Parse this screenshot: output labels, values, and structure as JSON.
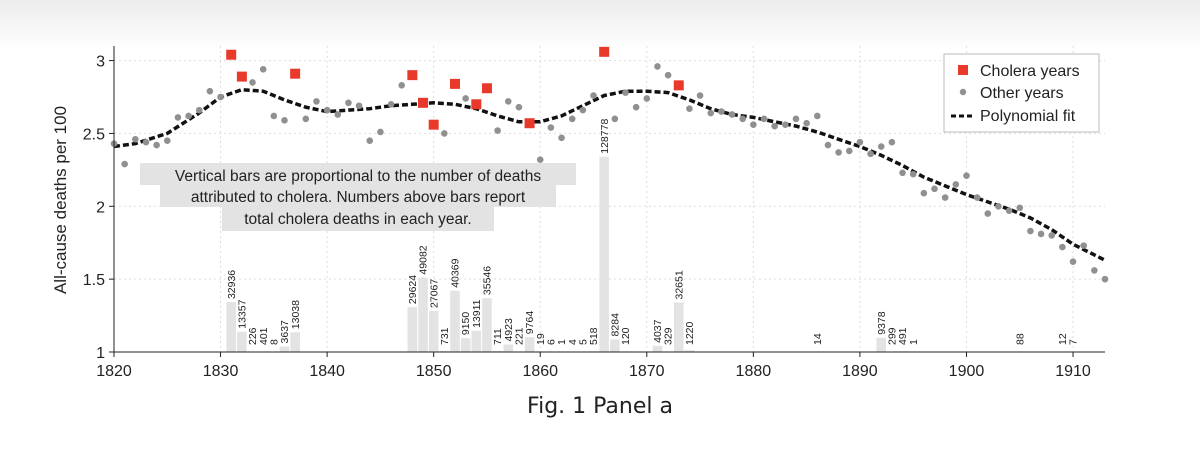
{
  "caption": "Fig. 1 Panel a",
  "chart_data": {
    "type": "scatter",
    "ylabel": "All-cause deaths per 100",
    "xlim": [
      1820,
      1913
    ],
    "ylim": [
      1,
      3.1
    ],
    "xticks": [
      1820,
      1830,
      1840,
      1850,
      1860,
      1870,
      1880,
      1890,
      1900,
      1910
    ],
    "yticks": [
      1,
      1.5,
      2,
      2.5,
      3
    ],
    "grid": true,
    "legend_position": "top-right",
    "legend": {
      "cholera": "Cholera years",
      "other": "Other years",
      "fit": "Polynomial fit"
    },
    "annotation": [
      "Vertical bars are proportional to the number of deaths",
      "attributed to cholera. Numbers above bars report",
      "total cholera deaths in each year."
    ],
    "colors": {
      "cholera": "#e8392b",
      "other": "#909090",
      "fit": "#111111",
      "bar": "#e3e3e3"
    },
    "series": [
      {
        "name": "Cholera years",
        "x": [
          1831,
          1832,
          1837,
          1848,
          1849,
          1850,
          1852,
          1854,
          1855,
          1859,
          1866,
          1873
        ],
        "y": [
          3.04,
          2.89,
          2.91,
          2.9,
          2.71,
          2.56,
          2.84,
          2.7,
          2.81,
          2.57,
          3.06,
          2.83
        ]
      },
      {
        "name": "Other years",
        "x": [
          1820,
          1821,
          1822,
          1823,
          1824,
          1825,
          1826,
          1827,
          1828,
          1829,
          1830,
          1833,
          1834,
          1835,
          1836,
          1838,
          1839,
          1840,
          1841,
          1842,
          1843,
          1844,
          1845,
          1846,
          1847,
          1851,
          1853,
          1856,
          1857,
          1858,
          1860,
          1861,
          1862,
          1863,
          1864,
          1865,
          1867,
          1868,
          1869,
          1870,
          1871,
          1872,
          1874,
          1875,
          1876,
          1877,
          1878,
          1879,
          1880,
          1881,
          1882,
          1883,
          1884,
          1885,
          1886,
          1887,
          1888,
          1889,
          1890,
          1891,
          1892,
          1893,
          1894,
          1895,
          1896,
          1897,
          1898,
          1899,
          1900,
          1901,
          1902,
          1903,
          1904,
          1905,
          1906,
          1907,
          1908,
          1909,
          1910,
          1911,
          1912,
          1913
        ],
        "y": [
          2.43,
          2.29,
          2.46,
          2.44,
          2.42,
          2.45,
          2.61,
          2.62,
          2.66,
          2.79,
          2.75,
          2.85,
          2.94,
          2.62,
          2.59,
          2.6,
          2.72,
          2.66,
          2.63,
          2.71,
          2.69,
          2.45,
          2.51,
          2.7,
          2.83,
          2.5,
          2.74,
          2.52,
          2.72,
          2.68,
          2.32,
          2.54,
          2.47,
          2.6,
          2.66,
          2.76,
          2.6,
          2.78,
          2.68,
          2.74,
          2.96,
          2.9,
          2.67,
          2.76,
          2.64,
          2.65,
          2.63,
          2.6,
          2.56,
          2.6,
          2.55,
          2.56,
          2.6,
          2.57,
          2.62,
          2.42,
          2.37,
          2.38,
          2.44,
          2.36,
          2.41,
          2.44,
          2.23,
          2.22,
          2.09,
          2.12,
          2.06,
          2.15,
          2.21,
          2.06,
          1.95,
          2.0,
          1.97,
          1.99,
          1.83,
          1.81,
          1.8,
          1.72,
          1.62,
          1.73,
          1.56,
          1.5
        ]
      },
      {
        "name": "Polynomial fit",
        "x": [
          1820,
          1822,
          1825,
          1828,
          1830,
          1832,
          1834,
          1836,
          1838,
          1840,
          1842,
          1844,
          1846,
          1848,
          1850,
          1852,
          1854,
          1856,
          1858,
          1860,
          1862,
          1864,
          1866,
          1868,
          1870,
          1872,
          1874,
          1876,
          1878,
          1880,
          1882,
          1884,
          1886,
          1888,
          1890,
          1892,
          1894,
          1896,
          1898,
          1900,
          1902,
          1904,
          1906,
          1908,
          1910,
          1913
        ],
        "y": [
          2.41,
          2.43,
          2.5,
          2.64,
          2.75,
          2.8,
          2.79,
          2.73,
          2.68,
          2.65,
          2.66,
          2.67,
          2.69,
          2.7,
          2.71,
          2.7,
          2.67,
          2.62,
          2.58,
          2.58,
          2.62,
          2.69,
          2.76,
          2.79,
          2.79,
          2.78,
          2.73,
          2.67,
          2.63,
          2.61,
          2.58,
          2.55,
          2.51,
          2.46,
          2.41,
          2.35,
          2.28,
          2.2,
          2.14,
          2.08,
          2.03,
          1.98,
          1.92,
          1.84,
          1.74,
          1.63
        ]
      }
    ],
    "bars": [
      {
        "x": 1831,
        "deaths": 32936
      },
      {
        "x": 1832,
        "deaths": 13357
      },
      {
        "x": 1833,
        "deaths": 226
      },
      {
        "x": 1834,
        "deaths": 401
      },
      {
        "x": 1835,
        "deaths": 8
      },
      {
        "x": 1836,
        "deaths": 3637
      },
      {
        "x": 1837,
        "deaths": 13038
      },
      {
        "x": 1848,
        "deaths": 29624
      },
      {
        "x": 1849,
        "deaths": 49082
      },
      {
        "x": 1850,
        "deaths": 27067
      },
      {
        "x": 1851,
        "deaths": 731
      },
      {
        "x": 1852,
        "deaths": 40369
      },
      {
        "x": 1853,
        "deaths": 9150
      },
      {
        "x": 1854,
        "deaths": 13911
      },
      {
        "x": 1855,
        "deaths": 35546
      },
      {
        "x": 1856,
        "deaths": 711
      },
      {
        "x": 1857,
        "deaths": 4923
      },
      {
        "x": 1858,
        "deaths": 221
      },
      {
        "x": 1859,
        "deaths": 9764
      },
      {
        "x": 1860,
        "deaths": 19
      },
      {
        "x": 1861,
        "deaths": 6
      },
      {
        "x": 1862,
        "deaths": 1
      },
      {
        "x": 1863,
        "deaths": 4
      },
      {
        "x": 1864,
        "deaths": 5
      },
      {
        "x": 1865,
        "deaths": 518
      },
      {
        "x": 1866,
        "deaths": 128778
      },
      {
        "x": 1867,
        "deaths": 8284
      },
      {
        "x": 1868,
        "deaths": 120
      },
      {
        "x": 1871,
        "deaths": 4037
      },
      {
        "x": 1872,
        "deaths": 329
      },
      {
        "x": 1873,
        "deaths": 32651
      },
      {
        "x": 1874,
        "deaths": 1220
      },
      {
        "x": 1886,
        "deaths": 14
      },
      {
        "x": 1892,
        "deaths": 9378
      },
      {
        "x": 1893,
        "deaths": 299
      },
      {
        "x": 1894,
        "deaths": 491
      },
      {
        "x": 1895,
        "deaths": 1
      },
      {
        "x": 1905,
        "deaths": 88
      },
      {
        "x": 1909,
        "deaths": 12
      },
      {
        "x": 1910,
        "deaths": 7
      }
    ]
  }
}
